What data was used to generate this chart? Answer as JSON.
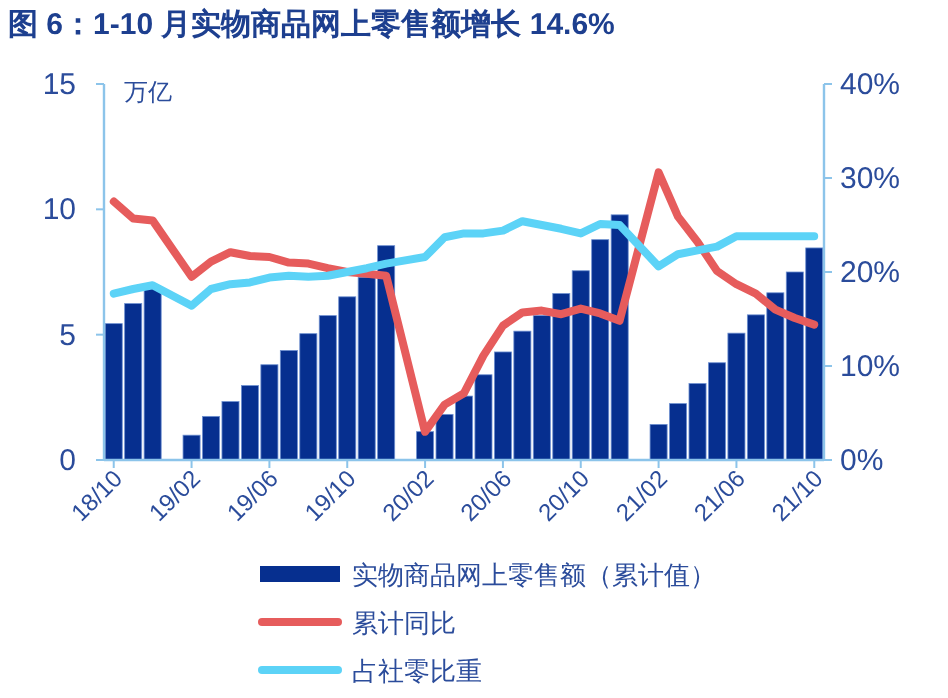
{
  "chart_data": {
    "type": "bar",
    "title": "图 6：1-10 月实物商品网上零售额增长 14.6%",
    "ylabel": "万亿",
    "categories": [
      "18/10",
      null,
      null,
      null,
      "19/02",
      null,
      null,
      null,
      "19/06",
      null,
      null,
      null,
      "19/10",
      null,
      null,
      null,
      "20/02",
      null,
      null,
      null,
      "20/06",
      null,
      null,
      null,
      "20/10",
      null,
      null,
      null,
      "21/02",
      null,
      null,
      null,
      "21/06",
      null,
      null,
      null,
      "21/10"
    ],
    "series": [
      {
        "name": "实物商品网上零售额（累计值）",
        "color": "#062f8f",
        "values": [
          5.44,
          6.24,
          6.83,
          null,
          0.99,
          1.74,
          2.33,
          2.97,
          3.8,
          4.37,
          5.04,
          5.76,
          6.51,
          7.29,
          8.55,
          null,
          1.13,
          1.82,
          2.55,
          3.4,
          4.31,
          5.14,
          5.76,
          6.64,
          7.55,
          8.79,
          9.78,
          null,
          1.42,
          2.25,
          3.05,
          3.88,
          5.06,
          5.79,
          6.67,
          7.5,
          8.46
        ]
      },
      {
        "name": "累计同比",
        "type": "line",
        "axis": "y2",
        "color": "#e65c5c",
        "values": [
          27.5,
          25.7,
          25.5,
          null,
          19.5,
          21.1,
          22.1,
          21.7,
          21.6,
          21.0,
          20.9,
          20.4,
          20.0,
          19.8,
          19.6,
          null,
          3.0,
          5.9,
          7.1,
          11.1,
          14.3,
          15.7,
          15.9,
          15.5,
          16.1,
          15.6,
          14.8,
          null,
          30.6,
          25.9,
          23.2,
          20.1,
          18.7,
          17.7,
          16.0,
          15.1,
          14.4
        ]
      },
      {
        "name": "占社零比重",
        "type": "line",
        "axis": "y2",
        "color": "#5cd3f7",
        "values": [
          17.7,
          18.2,
          18.6,
          null,
          16.4,
          18.2,
          18.7,
          18.9,
          19.4,
          19.6,
          19.5,
          19.6,
          20.0,
          20.4,
          20.9,
          null,
          21.6,
          23.7,
          24.1,
          24.1,
          24.4,
          25.4,
          25.0,
          24.6,
          24.1,
          25.1,
          25.0,
          null,
          20.6,
          21.9,
          22.3,
          22.7,
          23.8,
          23.8,
          23.8,
          23.8,
          23.8
        ]
      }
    ],
    "ylim": [
      0,
      15
    ],
    "yticks": [
      0,
      5,
      10,
      15
    ],
    "y2lim": [
      0,
      40
    ],
    "y2ticks": [
      {
        "value": 0,
        "label": "0%"
      },
      {
        "value": 10,
        "label": "10%"
      },
      {
        "value": 20,
        "label": "20%"
      },
      {
        "value": 30,
        "label": "30%"
      },
      {
        "value": 40,
        "label": "40%"
      }
    ],
    "legend": "bottom",
    "grid": false,
    "marker": "none"
  }
}
